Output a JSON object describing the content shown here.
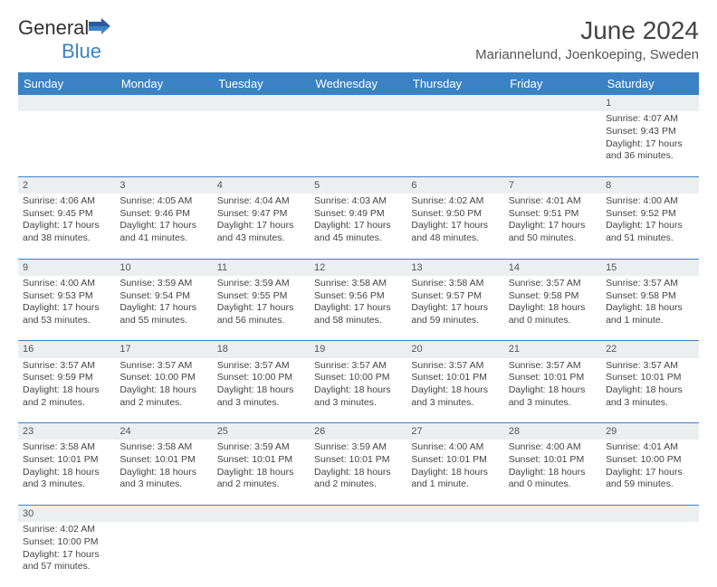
{
  "logo": {
    "text1": "General",
    "text2": "Blue"
  },
  "title": "June 2024",
  "location": "Mariannelund, Joenkoeping, Sweden",
  "headers": [
    "Sunday",
    "Monday",
    "Tuesday",
    "Wednesday",
    "Thursday",
    "Friday",
    "Saturday"
  ],
  "colors": {
    "headerBg": "#3b82c4",
    "dayBg": "#eceff0",
    "border": "#3b82c4"
  },
  "weeks": [
    {
      "nums": [
        "",
        "",
        "",
        "",
        "",
        "",
        "1"
      ],
      "cells": [
        "",
        "",
        "",
        "",
        "",
        "",
        "Sunrise: 4:07 AM\nSunset: 9:43 PM\nDaylight: 17 hours and 36 minutes."
      ]
    },
    {
      "nums": [
        "2",
        "3",
        "4",
        "5",
        "6",
        "7",
        "8"
      ],
      "cells": [
        "Sunrise: 4:06 AM\nSunset: 9:45 PM\nDaylight: 17 hours and 38 minutes.",
        "Sunrise: 4:05 AM\nSunset: 9:46 PM\nDaylight: 17 hours and 41 minutes.",
        "Sunrise: 4:04 AM\nSunset: 9:47 PM\nDaylight: 17 hours and 43 minutes.",
        "Sunrise: 4:03 AM\nSunset: 9:49 PM\nDaylight: 17 hours and 45 minutes.",
        "Sunrise: 4:02 AM\nSunset: 9:50 PM\nDaylight: 17 hours and 48 minutes.",
        "Sunrise: 4:01 AM\nSunset: 9:51 PM\nDaylight: 17 hours and 50 minutes.",
        "Sunrise: 4:00 AM\nSunset: 9:52 PM\nDaylight: 17 hours and 51 minutes."
      ]
    },
    {
      "nums": [
        "9",
        "10",
        "11",
        "12",
        "13",
        "14",
        "15"
      ],
      "cells": [
        "Sunrise: 4:00 AM\nSunset: 9:53 PM\nDaylight: 17 hours and 53 minutes.",
        "Sunrise: 3:59 AM\nSunset: 9:54 PM\nDaylight: 17 hours and 55 minutes.",
        "Sunrise: 3:59 AM\nSunset: 9:55 PM\nDaylight: 17 hours and 56 minutes.",
        "Sunrise: 3:58 AM\nSunset: 9:56 PM\nDaylight: 17 hours and 58 minutes.",
        "Sunrise: 3:58 AM\nSunset: 9:57 PM\nDaylight: 17 hours and 59 minutes.",
        "Sunrise: 3:57 AM\nSunset: 9:58 PM\nDaylight: 18 hours and 0 minutes.",
        "Sunrise: 3:57 AM\nSunset: 9:58 PM\nDaylight: 18 hours and 1 minute."
      ]
    },
    {
      "nums": [
        "16",
        "17",
        "18",
        "19",
        "20",
        "21",
        "22"
      ],
      "cells": [
        "Sunrise: 3:57 AM\nSunset: 9:59 PM\nDaylight: 18 hours and 2 minutes.",
        "Sunrise: 3:57 AM\nSunset: 10:00 PM\nDaylight: 18 hours and 2 minutes.",
        "Sunrise: 3:57 AM\nSunset: 10:00 PM\nDaylight: 18 hours and 3 minutes.",
        "Sunrise: 3:57 AM\nSunset: 10:00 PM\nDaylight: 18 hours and 3 minutes.",
        "Sunrise: 3:57 AM\nSunset: 10:01 PM\nDaylight: 18 hours and 3 minutes.",
        "Sunrise: 3:57 AM\nSunset: 10:01 PM\nDaylight: 18 hours and 3 minutes.",
        "Sunrise: 3:57 AM\nSunset: 10:01 PM\nDaylight: 18 hours and 3 minutes."
      ]
    },
    {
      "nums": [
        "23",
        "24",
        "25",
        "26",
        "27",
        "28",
        "29"
      ],
      "cells": [
        "Sunrise: 3:58 AM\nSunset: 10:01 PM\nDaylight: 18 hours and 3 minutes.",
        "Sunrise: 3:58 AM\nSunset: 10:01 PM\nDaylight: 18 hours and 3 minutes.",
        "Sunrise: 3:59 AM\nSunset: 10:01 PM\nDaylight: 18 hours and 2 minutes.",
        "Sunrise: 3:59 AM\nSunset: 10:01 PM\nDaylight: 18 hours and 2 minutes.",
        "Sunrise: 4:00 AM\nSunset: 10:01 PM\nDaylight: 18 hours and 1 minute.",
        "Sunrise: 4:00 AM\nSunset: 10:01 PM\nDaylight: 18 hours and 0 minutes.",
        "Sunrise: 4:01 AM\nSunset: 10:00 PM\nDaylight: 17 hours and 59 minutes."
      ]
    },
    {
      "nums": [
        "30",
        "",
        "",
        "",
        "",
        "",
        ""
      ],
      "cells": [
        "Sunrise: 4:02 AM\nSunset: 10:00 PM\nDaylight: 17 hours and 57 minutes.",
        "",
        "",
        "",
        "",
        "",
        ""
      ]
    }
  ]
}
